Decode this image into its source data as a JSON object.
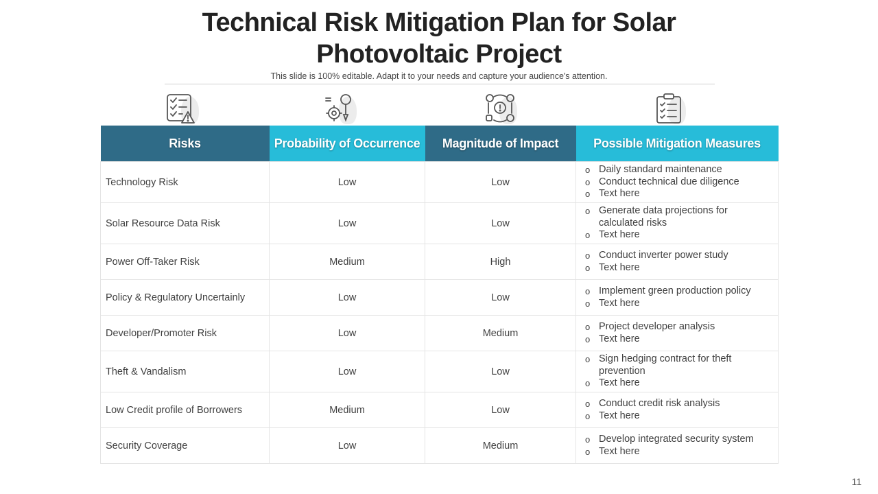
{
  "slide": {
    "title_line1": "Technical Risk Mitigation Plan for Solar",
    "title_line2": "Photovoltaic Project",
    "subtitle": "This slide is 100% editable. Adapt it to your needs and capture your audience's attention.",
    "page_number": "11"
  },
  "icons": [
    "checklist-warning-icon",
    "gear-lightbulb-icon",
    "gears-cycle-icon",
    "clipboard-checklist-icon"
  ],
  "colors": {
    "header_dark": "#2f6b87",
    "header_light": "#27bcd9"
  },
  "table": {
    "headers": [
      "Risks",
      "Probability of Occurrence",
      "Magnitude of Impact",
      "Possible Mitigation Measures"
    ],
    "rows": [
      {
        "risk": "Technology Risk",
        "probability": "Low",
        "impact": "Low",
        "measures": [
          "Daily standard maintenance",
          "Conduct technical due diligence",
          "Text here"
        ]
      },
      {
        "risk": "Solar Resource Data Risk",
        "probability": "Low",
        "impact": "Low",
        "measures": [
          "Generate data projections for calculated risks",
          "Text here"
        ]
      },
      {
        "risk": "Power Off-Taker Risk",
        "probability": "Medium",
        "impact": "High",
        "measures": [
          "Conduct inverter power study",
          "Text here"
        ]
      },
      {
        "risk": "Policy & Regulatory Uncertainly",
        "probability": "Low",
        "impact": "Low",
        "measures": [
          "Implement green production policy",
          "Text here"
        ]
      },
      {
        "risk": "Developer/Promoter Risk",
        "probability": "Low",
        "impact": "Medium",
        "measures": [
          "Project developer analysis",
          "Text here"
        ]
      },
      {
        "risk": "Theft & Vandalism",
        "probability": "Low",
        "impact": "Low",
        "measures": [
          "Sign hedging contract for theft prevention",
          "Text here"
        ]
      },
      {
        "risk": "Low Credit profile of Borrowers",
        "probability": "Medium",
        "impact": "Low",
        "measures": [
          "Conduct credit risk analysis",
          "Text here"
        ]
      },
      {
        "risk": "Security Coverage",
        "probability": "Low",
        "impact": "Medium",
        "measures": [
          "Develop integrated security system",
          "Text here"
        ]
      }
    ]
  }
}
